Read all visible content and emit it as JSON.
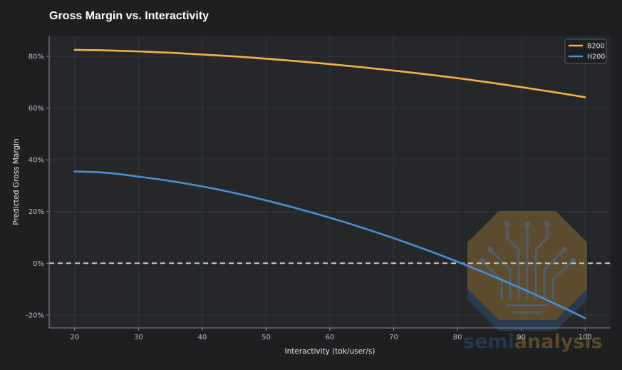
{
  "chart_data": {
    "type": "line",
    "title": "Gross Margin vs. Interactivity",
    "xlabel": "Interactivity (tok/user/s)",
    "ylabel": "Predicted Gross Margin",
    "xlim": [
      16,
      104
    ],
    "ylim": [
      -25,
      88
    ],
    "xticks": [
      20,
      30,
      40,
      50,
      60,
      70,
      80,
      90,
      100
    ],
    "yticks": [
      -20,
      0,
      20,
      40,
      60,
      80
    ],
    "xtick_labels": [
      "20",
      "30",
      "40",
      "50",
      "60",
      "70",
      "80",
      "90",
      "100"
    ],
    "ytick_labels": [
      "-20%",
      "0%",
      "20%",
      "40%",
      "60%",
      "80%"
    ],
    "grid": true,
    "legend_position": "top-right",
    "reference_line": {
      "y": 0,
      "style": "dashed"
    },
    "x": [
      20,
      25,
      30,
      35,
      40,
      45,
      50,
      55,
      60,
      65,
      70,
      75,
      80,
      85,
      90,
      95,
      100
    ],
    "series": [
      {
        "name": "B200",
        "color": "#f2b54a",
        "values": [
          82.5,
          82.3,
          81.9,
          81.4,
          80.7,
          80.0,
          79.1,
          78.1,
          77.0,
          75.8,
          74.5,
          73.1,
          71.6,
          69.9,
          68.1,
          66.2,
          64.2
        ]
      },
      {
        "name": "H200",
        "color": "#4a8fd8",
        "values": [
          35.5,
          35.0,
          33.5,
          31.8,
          29.7,
          27.2,
          24.3,
          21.1,
          17.6,
          13.8,
          9.7,
          5.3,
          0.6,
          -4.4,
          -9.7,
          -15.3,
          -21.2
        ]
      }
    ]
  },
  "watermark": {
    "part1": "semi",
    "part2": "analysis"
  },
  "colors": {
    "background": "#1e1f21",
    "plot_background": "#25272a",
    "grid": "#33363a",
    "zero_line": "#c8c8c8"
  }
}
